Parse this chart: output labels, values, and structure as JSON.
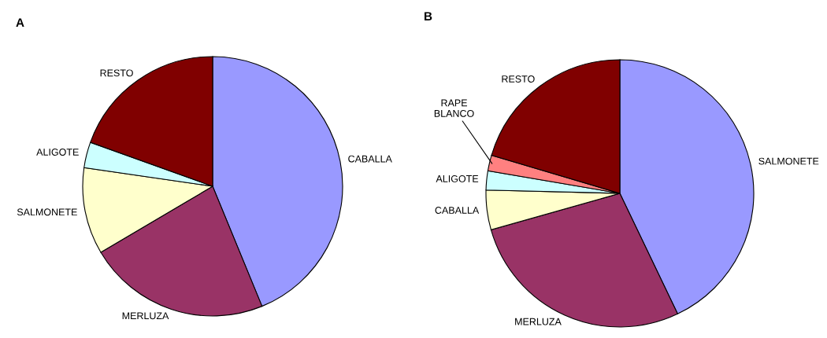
{
  "chart_data": [
    {
      "type": "pie",
      "title": "A",
      "categories": [
        "CABALLA",
        "MERLUZA",
        "SALMONETE",
        "ALIGOTE",
        "RESTO"
      ],
      "values": [
        43.8,
        22.7,
        10.8,
        3.2,
        19.5
      ],
      "colors": [
        "#9999ff",
        "#993366",
        "#ffffcc",
        "#ccffff",
        "#800000"
      ]
    },
    {
      "type": "pie",
      "title": "B",
      "categories": [
        "SALMONETE",
        "MERLUZA",
        "CABALLA",
        "ALIGOTE",
        "RAPE BLANCO",
        "RESTO"
      ],
      "values": [
        42.9,
        27.7,
        4.8,
        2.3,
        1.9,
        20.4
      ],
      "colors": [
        "#9999ff",
        "#993366",
        "#ffffcc",
        "#ccffff",
        "#ff8080",
        "#800000"
      ]
    }
  ]
}
